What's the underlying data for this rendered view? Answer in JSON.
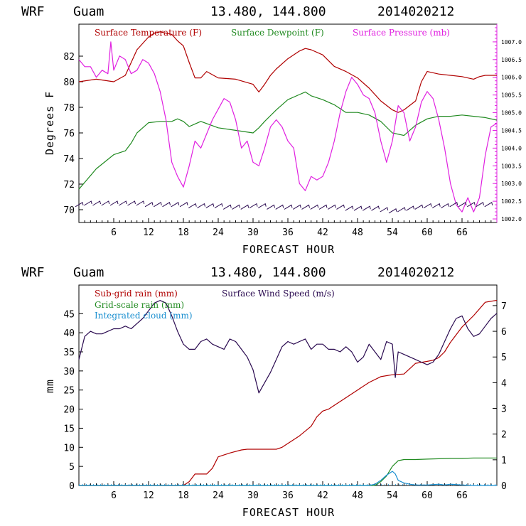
{
  "charts": [
    {
      "header": {
        "model": "WRF",
        "location": "Guam",
        "coords": "13.480, 144.800",
        "run": "2014020212"
      },
      "xlabel": "FORECAST HOUR",
      "ylabel": "Degrees F",
      "x_ticks": [
        "6",
        "12",
        "18",
        "24",
        "30",
        "36",
        "42",
        "48",
        "54",
        "60",
        "66"
      ],
      "y_ticks": [
        "70",
        "72",
        "74",
        "76",
        "78",
        "80",
        "82"
      ],
      "y2_ticks": [
        "1002.0",
        "1002.5",
        "1003.0",
        "1003.5",
        "1004.0",
        "1004.5",
        "1005.0",
        "1005.5",
        "1006.0",
        "1006.5",
        "1007.0"
      ],
      "legend": [
        "Surface Temperature (F)",
        "Surface Dewpoint (F)",
        "Surface Pressure (mb)"
      ]
    },
    {
      "header": {
        "model": "WRF",
        "location": "Guam",
        "coords": "13.480, 144.800",
        "run": "2014020212"
      },
      "xlabel": "FORECAST HOUR",
      "ylabel": "mm",
      "x_ticks": [
        "6",
        "12",
        "18",
        "24",
        "30",
        "36",
        "42",
        "48",
        "54",
        "60",
        "66"
      ],
      "y_ticks": [
        "0",
        "5",
        "10",
        "15",
        "20",
        "25",
        "30",
        "35",
        "40",
        "45"
      ],
      "y2_ticks": [
        "0",
        "1",
        "2",
        "3",
        "4",
        "5",
        "6",
        "7"
      ],
      "legend": [
        "Sub-grid rain (mm)",
        "Surface Wind Speed (m/s)",
        "Grid-scale rain (mm)",
        "Integrated cloud (mm)"
      ]
    }
  ],
  "colors": {
    "temperature": "#b00000",
    "dewpoint": "#208a20",
    "pressure": "#e020e0",
    "wind": "#2a0a50",
    "subgrid": "#b00000",
    "gridscale": "#208a20",
    "cloud": "#1a8fd0"
  },
  "chart_data": [
    {
      "type": "line",
      "title": "WRF Guam 13.480, 144.800 2014020212",
      "xlabel": "FORECAST HOUR",
      "ylabel": "Degrees F",
      "xlim": [
        0,
        72
      ],
      "ylim": [
        69,
        84.5
      ],
      "y2lim": [
        1001.9,
        1007.5
      ],
      "series": [
        {
          "name": "Surface Temperature (F)",
          "axis": "left",
          "x": [
            0,
            3,
            6,
            8,
            9,
            10,
            12,
            13,
            14,
            16,
            17,
            18,
            19,
            20,
            21,
            22,
            24,
            27,
            30,
            31,
            32,
            33,
            34,
            36,
            38,
            39,
            40,
            42,
            44,
            46,
            48,
            50,
            52,
            54,
            55,
            56,
            58,
            59,
            60,
            62,
            64,
            66,
            68,
            69,
            70,
            72
          ],
          "y": [
            80.0,
            80.2,
            80.0,
            80.5,
            81.5,
            82.5,
            83.5,
            83.8,
            83.9,
            83.7,
            83.2,
            82.8,
            81.5,
            80.3,
            80.3,
            80.8,
            80.3,
            80.2,
            79.8,
            79.2,
            79.8,
            80.5,
            81.0,
            81.8,
            82.4,
            82.6,
            82.5,
            82.1,
            81.2,
            80.8,
            80.3,
            79.5,
            78.5,
            77.8,
            77.6,
            77.8,
            78.5,
            80.0,
            80.8,
            80.6,
            80.5,
            80.4,
            80.2,
            80.4,
            80.5,
            80.5
          ]
        },
        {
          "name": "Surface Dewpoint (F)",
          "axis": "left",
          "x": [
            0,
            3,
            6,
            8,
            9,
            10,
            11,
            12,
            14,
            16,
            17,
            18,
            19,
            20,
            21,
            24,
            27,
            30,
            31,
            32,
            34,
            36,
            38,
            39,
            40,
            42,
            44,
            46,
            48,
            50,
            52,
            54,
            56,
            58,
            60,
            62,
            64,
            66,
            68,
            70,
            72
          ],
          "y": [
            71.6,
            73.2,
            74.3,
            74.6,
            75.2,
            76.0,
            76.4,
            76.8,
            76.9,
            76.9,
            77.1,
            76.9,
            76.5,
            76.7,
            76.9,
            76.4,
            76.2,
            76.0,
            76.4,
            76.9,
            77.8,
            78.6,
            79.0,
            79.2,
            78.9,
            78.6,
            78.2,
            77.6,
            77.6,
            77.4,
            76.9,
            76.0,
            75.8,
            76.6,
            77.1,
            77.3,
            77.3,
            77.4,
            77.3,
            77.2,
            77.0
          ]
        },
        {
          "name": "Surface Pressure (mb)",
          "axis": "right",
          "x": [
            0,
            1,
            2,
            3,
            4,
            5,
            5.5,
            6,
            7,
            8,
            9,
            10,
            11,
            12,
            13,
            14,
            15,
            16,
            17,
            18,
            19,
            20,
            21,
            22,
            23,
            24,
            25,
            26,
            27,
            28,
            29,
            30,
            31,
            32,
            33,
            34,
            35,
            36,
            37,
            38,
            39,
            40,
            41,
            42,
            43,
            44,
            45,
            46,
            47,
            48,
            49,
            50,
            51,
            52,
            53,
            54,
            55,
            56,
            57,
            58,
            59,
            60,
            61,
            62,
            63,
            64,
            65,
            66,
            67,
            68,
            69,
            70,
            71,
            72
          ],
          "y": [
            1006.5,
            1006.3,
            1006.3,
            1006.0,
            1006.2,
            1006.1,
            1007.0,
            1006.2,
            1006.6,
            1006.5,
            1006.1,
            1006.2,
            1006.5,
            1006.4,
            1006.1,
            1005.6,
            1004.8,
            1003.6,
            1003.2,
            1002.9,
            1003.5,
            1004.2,
            1004.0,
            1004.4,
            1004.8,
            1005.1,
            1005.4,
            1005.3,
            1004.8,
            1004.0,
            1004.2,
            1003.6,
            1003.5,
            1004.0,
            1004.6,
            1004.8,
            1004.6,
            1004.2,
            1004.0,
            1003.0,
            1002.8,
            1003.2,
            1003.1,
            1003.2,
            1003.6,
            1004.2,
            1005.0,
            1005.6,
            1006.0,
            1005.8,
            1005.5,
            1005.4,
            1005.0,
            1004.2,
            1003.6,
            1004.2,
            1005.2,
            1005.0,
            1004.2,
            1004.6,
            1005.3,
            1005.6,
            1005.4,
            1004.8,
            1004.0,
            1003.0,
            1002.4,
            1002.2,
            1002.6,
            1002.2,
            1002.6,
            1003.8,
            1004.6,
            1004.7
          ]
        },
        {
          "name": "Wind barbs",
          "axis": "left",
          "x": [
            0,
            1.5,
            3,
            4.5,
            6,
            7.5,
            9,
            10.5,
            12,
            13.5,
            15,
            16.5,
            18,
            19.5,
            21,
            22.5,
            24,
            25.5,
            27,
            28.5,
            30,
            31.5,
            33,
            34.5,
            36,
            37.5,
            39,
            40.5,
            42,
            43.5,
            45,
            46.5,
            48,
            49.5,
            51,
            52.5,
            54,
            55.5,
            57,
            58.5,
            60,
            61.5,
            63,
            64.5,
            66,
            67.5,
            69,
            70.5
          ],
          "y": [
            70.4,
            70.5,
            70.5,
            70.5,
            70.5,
            70.5,
            70.5,
            70.5,
            70.4,
            70.4,
            70.4,
            70.4,
            70.4,
            70.3,
            70.3,
            70.3,
            70.3,
            70.2,
            70.2,
            70.2,
            70.3,
            70.3,
            70.2,
            70.2,
            70.2,
            70.2,
            70.2,
            70.2,
            70.2,
            70.2,
            70.2,
            70.1,
            70.1,
            70.1,
            70.1,
            70.0,
            69.9,
            70.0,
            70.1,
            70.2,
            70.3,
            70.3,
            70.3,
            70.4,
            70.4,
            70.4,
            70.4,
            70.4
          ]
        }
      ]
    },
    {
      "type": "line",
      "title": "WRF Guam 13.480, 144.800 2014020212",
      "xlabel": "FORECAST HOUR",
      "ylabel": "mm",
      "xlim": [
        0,
        72
      ],
      "ylim": [
        0,
        52.5
      ],
      "y2lim": [
        0,
        7.8
      ],
      "series": [
        {
          "name": "Sub-grid rain (mm)",
          "axis": "left",
          "x": [
            0,
            18,
            19,
            20,
            22,
            23,
            24,
            26,
            28,
            29,
            31,
            34,
            35,
            36,
            38,
            40,
            41,
            42,
            43,
            44,
            46,
            48,
            50,
            52,
            54,
            56,
            58,
            60,
            61,
            62,
            63,
            64,
            66,
            68,
            70,
            72
          ],
          "y": [
            0,
            0,
            1.0,
            3.0,
            3.0,
            4.5,
            7.5,
            8.5,
            9.3,
            9.5,
            9.5,
            9.5,
            10.0,
            11.0,
            13.0,
            15.5,
            18.0,
            19.5,
            20.0,
            21.0,
            23.0,
            25.0,
            27.0,
            28.5,
            29.0,
            29.2,
            32.0,
            32.5,
            32.8,
            33.5,
            35.0,
            37.5,
            41.5,
            44.5,
            48.0,
            48.5
          ]
        },
        {
          "name": "Surface Wind Speed (m/s)",
          "axis": "right",
          "x": [
            0,
            1,
            2,
            3,
            4,
            5,
            6,
            7,
            8,
            9,
            10,
            11,
            12,
            13,
            14,
            15,
            16,
            17,
            18,
            19,
            20,
            21,
            22,
            23,
            24,
            25,
            26,
            27,
            28,
            29,
            30,
            31,
            32,
            33,
            34,
            35,
            36,
            37,
            38,
            39,
            40,
            41,
            42,
            43,
            44,
            45,
            46,
            47,
            48,
            49,
            50,
            51,
            52,
            53,
            54,
            54.5,
            55,
            56,
            57,
            58,
            59,
            60,
            61,
            62,
            63,
            64,
            65,
            66,
            67,
            68,
            69,
            70,
            71,
            72
          ],
          "y": [
            4.9,
            5.8,
            6.0,
            5.9,
            5.9,
            6.0,
            6.1,
            6.1,
            6.2,
            6.1,
            6.3,
            6.5,
            6.8,
            7.1,
            7.2,
            7.1,
            6.6,
            6.0,
            5.5,
            5.3,
            5.3,
            5.6,
            5.7,
            5.5,
            5.4,
            5.3,
            5.7,
            5.6,
            5.3,
            5.0,
            4.5,
            3.6,
            4.0,
            4.4,
            4.9,
            5.4,
            5.6,
            5.5,
            5.6,
            5.7,
            5.3,
            5.5,
            5.5,
            5.3,
            5.3,
            5.2,
            5.4,
            5.2,
            4.8,
            5.0,
            5.5,
            5.2,
            4.9,
            5.6,
            5.5,
            4.2,
            5.2,
            5.1,
            5.0,
            4.9,
            4.8,
            4.7,
            4.8,
            5.1,
            5.6,
            6.1,
            6.5,
            6.6,
            6.1,
            5.8,
            5.9,
            6.2,
            6.5,
            6.7
          ]
        },
        {
          "name": "Grid-scale rain (mm)",
          "axis": "left",
          "x": [
            0,
            51,
            52,
            53,
            54,
            55,
            56,
            58,
            60,
            62,
            64,
            66,
            68,
            70,
            72
          ],
          "y": [
            0,
            0,
            1.0,
            2.5,
            5.0,
            6.5,
            6.8,
            6.8,
            6.9,
            7.0,
            7.1,
            7.1,
            7.2,
            7.2,
            7.2
          ]
        },
        {
          "name": "Integrated cloud (mm)",
          "axis": "right",
          "x": [
            0,
            50,
            51,
            52,
            53,
            54,
            54.5,
            55,
            56,
            57,
            58,
            60,
            62,
            63,
            64,
            66,
            68,
            72
          ],
          "y": [
            0,
            0,
            0.05,
            0.2,
            0.4,
            0.55,
            0.45,
            0.2,
            0.1,
            0.05,
            0.02,
            0.02,
            0.05,
            0.02,
            0.05,
            0.02,
            0,
            0
          ]
        }
      ]
    }
  ]
}
